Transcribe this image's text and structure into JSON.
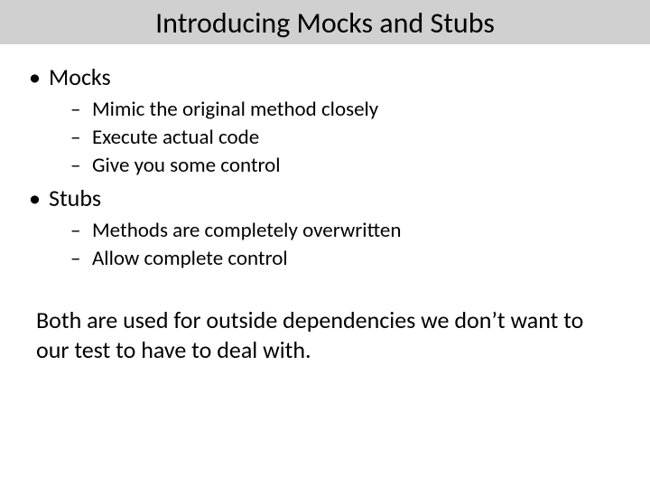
{
  "title": "Introducing Mocks and Stubs",
  "sections": [
    {
      "heading": "Mocks",
      "items": [
        "Mimic the original method closely",
        "Execute actual code",
        "Give you some control"
      ]
    },
    {
      "heading": "Stubs",
      "items": [
        "Methods are completely overwritten",
        "Allow complete control"
      ]
    }
  ],
  "closing": "Both are used for outside dependencies we don’t want to our test to have to deal with.",
  "style": {
    "slide_width": 720,
    "slide_height": 540,
    "title_bg": "#d0d0d0",
    "title_fontsize": 32,
    "level1_fontsize": 26,
    "level2_fontsize": 23,
    "closing_fontsize": 26,
    "text_color": "#000000",
    "background_color": "#ffffff",
    "font_family": "Calibri"
  }
}
